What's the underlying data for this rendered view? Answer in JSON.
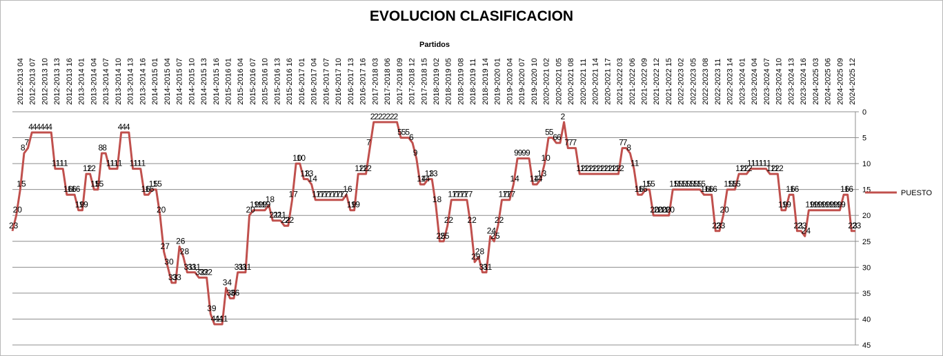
{
  "chart_data": {
    "type": "line",
    "title": "EVOLUCION CLASIFICACION",
    "xlabel": "Partidos",
    "ylabel": "",
    "y_reversed": true,
    "ylim": [
      0,
      45
    ],
    "y_ticks": [
      0,
      5,
      10,
      15,
      20,
      25,
      30,
      35,
      40,
      45
    ],
    "grid": "horizontal",
    "legend_position": "right",
    "x_tick_labels": [
      "2012-2013 04",
      "2012-2013 07",
      "2012-2013 10",
      "2012-2013 13",
      "2012-2013 16",
      "2013-2014 01",
      "2013-2014 04",
      "2013-2014 07",
      "2013-2014 10",
      "2013-2014 13",
      "2013-2014 16",
      "2014-2015 01",
      "2014-2015 04",
      "2014-2015 07",
      "2014-2015 10",
      "2014-2015 13",
      "2014-2015 16",
      "2015-2016 01",
      "2015-2016 04",
      "2015-2016 07",
      "2015-2016 10",
      "2015-2016 13",
      "2015-2016 16",
      "2016-2017 01",
      "2016-2017 04",
      "2016-2017 07",
      "2016-2017 10",
      "2016-2017 13",
      "2016-2017 16",
      "2017-2018 03",
      "2017-2018 06",
      "2017-2018 09",
      "2017-2018 12",
      "2017-2018 15",
      "2018-2019 02",
      "2018-2019 05",
      "2018-2019 08",
      "2018-2019 11",
      "2018-2019 14",
      "2019-2020 01",
      "2019-2020 04",
      "2019-2020 07",
      "2019-2020 10",
      "2020-2021 02",
      "2020-2021 05",
      "2020-2021 08",
      "2020-2021 11",
      "2020-2021 14",
      "2020-2021 17",
      "2021-2022 03",
      "2021-2022 06",
      "2021-2022 09",
      "2021-2022 12",
      "2021-2022 15",
      "2022-2023 02",
      "2022-2023 05",
      "2022-2023 08",
      "2022-2023 11",
      "2022-2023 14",
      "2023-2024 01",
      "2023-2024 04",
      "2023-2024 07",
      "2023-2024 10",
      "2023-2024 13",
      "2023-2024 16",
      "2024-2025 03",
      "2024-2025 06",
      "2024-2025 09",
      "2024-2025 12"
    ],
    "series": [
      {
        "name": "PUESTO",
        "color": "#c0504d",
        "values": [
          23,
          20,
          15,
          8,
          7,
          4,
          4,
          4,
          4,
          4,
          4,
          11,
          11,
          11,
          16,
          16,
          16,
          19,
          19,
          12,
          12,
          15,
          15,
          8,
          8,
          11,
          11,
          11,
          4,
          4,
          4,
          11,
          11,
          11,
          16,
          16,
          15,
          15,
          20,
          27,
          30,
          33,
          33,
          26,
          28,
          31,
          31,
          31,
          32,
          32,
          32,
          39,
          41,
          41,
          41,
          34,
          36,
          36,
          31,
          31,
          31,
          20,
          19,
          19,
          19,
          19,
          18,
          21,
          21,
          21,
          22,
          22,
          17,
          10,
          10,
          13,
          13,
          14,
          17,
          17,
          17,
          17,
          17,
          17,
          17,
          17,
          16,
          19,
          19,
          12,
          12,
          12,
          7,
          2,
          2,
          2,
          2,
          2,
          2,
          2,
          5,
          5,
          5,
          6,
          9,
          14,
          14,
          13,
          13,
          18,
          25,
          25,
          22,
          17,
          17,
          17,
          17,
          17,
          22,
          29,
          28,
          31,
          31,
          24,
          25,
          22,
          17,
          17,
          17,
          14,
          9,
          9,
          9,
          9,
          14,
          14,
          13,
          10,
          5,
          5,
          6,
          6,
          2,
          7,
          7,
          7,
          12,
          12,
          12,
          12,
          12,
          12,
          12,
          12,
          12,
          12,
          12,
          7,
          7,
          8,
          11,
          16,
          16,
          15,
          15,
          20,
          20,
          20,
          20,
          20,
          15,
          15,
          15,
          15,
          15,
          15,
          15,
          15,
          16,
          16,
          16,
          23,
          23,
          20,
          15,
          15,
          15,
          12,
          12,
          12,
          11,
          11,
          11,
          11,
          11,
          12,
          12,
          12,
          19,
          19,
          16,
          16,
          23,
          23,
          24,
          19,
          19,
          19,
          19,
          19,
          19,
          19,
          19,
          19,
          16,
          16,
          23,
          23
        ]
      }
    ]
  }
}
